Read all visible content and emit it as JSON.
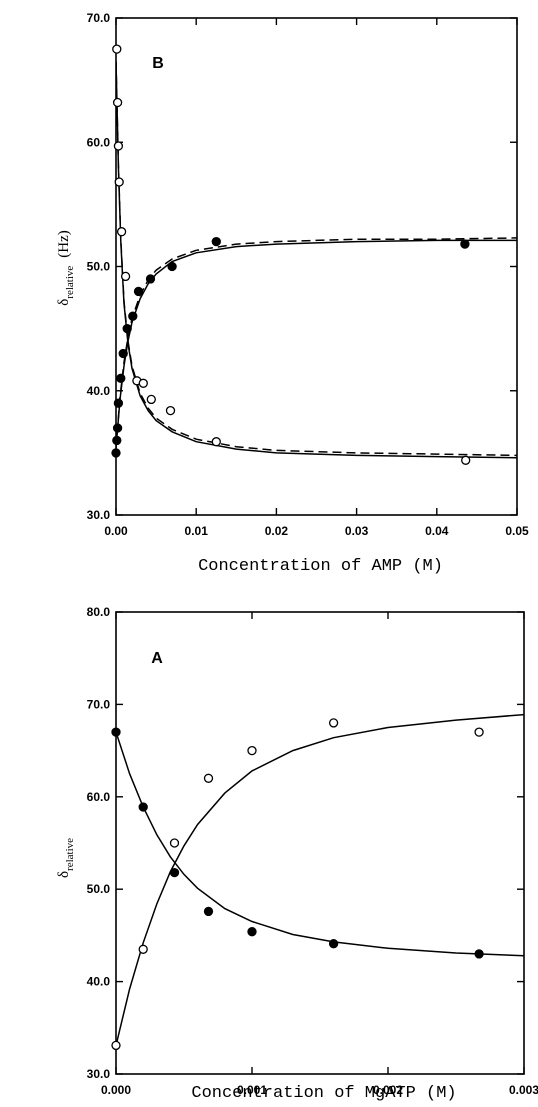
{
  "chart_data": [
    {
      "type": "scatter",
      "panel_label": "B",
      "xlabel": "Concentration of AMP (M)",
      "ylabel": {
        "base": "δ",
        "sub": "relative",
        "unit": "(Hz)"
      },
      "xlim": [
        0,
        0.05
      ],
      "ylim": [
        30,
        70
      ],
      "x_ticks": [
        "0.00",
        "0.01",
        "0.02",
        "0.03",
        "0.04",
        "0.05"
      ],
      "y_ticks": [
        "30.0",
        "40.0",
        "50.0",
        "60.0",
        "70.0"
      ],
      "grid": false,
      "series": [
        {
          "marker": "filled-circle",
          "points": [
            [
              0.0,
              35.0
            ],
            [
              0.0001,
              36.0
            ],
            [
              0.0002,
              37.0
            ],
            [
              0.0003,
              39.0
            ],
            [
              0.0006,
              41.0
            ],
            [
              0.0009,
              43.0
            ],
            [
              0.0014,
              45.0
            ],
            [
              0.0021,
              46.0
            ],
            [
              0.0028,
              48.0
            ],
            [
              0.0043,
              49.0
            ],
            [
              0.007,
              50.0
            ],
            [
              0.0125,
              52.0
            ],
            [
              0.0435,
              51.8
            ]
          ]
        },
        {
          "marker": "open-circle",
          "points": [
            [
              0.0001,
              67.5
            ],
            [
              0.0002,
              63.2
            ],
            [
              0.0003,
              59.7
            ],
            [
              0.0004,
              56.8
            ],
            [
              0.0007,
              52.8
            ],
            [
              0.0012,
              49.2
            ],
            [
              0.0026,
              40.8
            ],
            [
              0.0034,
              40.6
            ],
            [
              0.0044,
              39.3
            ],
            [
              0.0068,
              38.4
            ],
            [
              0.0125,
              35.9
            ],
            [
              0.0436,
              34.4
            ]
          ]
        }
      ],
      "fits": [
        {
          "style": "solid",
          "x": [
            0.0,
            0.0005,
            0.001,
            0.0015,
            0.002,
            0.003,
            0.004,
            0.005,
            0.007,
            0.01,
            0.015,
            0.02,
            0.03,
            0.04,
            0.05
          ],
          "y": [
            35.4,
            39.3,
            42.0,
            44.0,
            45.5,
            47.4,
            48.6,
            49.4,
            50.4,
            51.1,
            51.6,
            51.8,
            52.0,
            52.1,
            52.1
          ]
        },
        {
          "style": "dashed",
          "x": [
            0.0,
            0.0005,
            0.001,
            0.0015,
            0.002,
            0.003,
            0.004,
            0.005,
            0.007,
            0.01,
            0.015,
            0.02,
            0.03,
            0.04,
            0.05
          ],
          "y": [
            35.4,
            39.5,
            42.3,
            44.3,
            45.8,
            47.7,
            48.9,
            49.7,
            50.6,
            51.3,
            51.8,
            52.0,
            52.2,
            52.2,
            52.3
          ]
        },
        {
          "style": "solid",
          "x": [
            0.0,
            0.0003,
            0.0006,
            0.001,
            0.0015,
            0.002,
            0.003,
            0.004,
            0.005,
            0.007,
            0.01,
            0.015,
            0.02,
            0.03,
            0.04,
            0.05
          ],
          "y": [
            66.5,
            58.0,
            52.0,
            47.0,
            43.8,
            41.8,
            39.6,
            38.4,
            37.6,
            36.7,
            35.9,
            35.3,
            35.0,
            34.8,
            34.7,
            34.6
          ]
        },
        {
          "style": "dashed",
          "x": [
            0.0,
            0.0003,
            0.0006,
            0.001,
            0.0015,
            0.002,
            0.003,
            0.004,
            0.005,
            0.007,
            0.01,
            0.015,
            0.02,
            0.03,
            0.04,
            0.05
          ],
          "y": [
            66.5,
            58.2,
            52.2,
            47.2,
            44.0,
            42.0,
            39.8,
            38.6,
            37.8,
            36.9,
            36.1,
            35.5,
            35.2,
            35.0,
            34.9,
            34.8
          ]
        }
      ]
    },
    {
      "type": "scatter",
      "panel_label": "A",
      "xlabel": "Concentration of MgATP (M)",
      "ylabel": {
        "base": "δ",
        "sub": "relative",
        "unit": ""
      },
      "xlim": [
        0,
        0.003
      ],
      "ylim": [
        30,
        80
      ],
      "x_ticks": [
        "0.000",
        "0.001",
        "0.002",
        "0.003"
      ],
      "y_ticks": [
        "30.0",
        "40.0",
        "50.0",
        "60.0",
        "70.0",
        "80.0"
      ],
      "grid": false,
      "series": [
        {
          "marker": "filled-circle",
          "points": [
            [
              0.0,
              67.0
            ],
            [
              0.0002,
              58.9
            ],
            [
              0.00043,
              51.8
            ],
            [
              0.00068,
              47.6
            ],
            [
              0.001,
              45.4
            ],
            [
              0.0016,
              44.1
            ],
            [
              0.00267,
              43.0
            ]
          ]
        },
        {
          "marker": "open-circle",
          "points": [
            [
              0.0,
              33.1
            ],
            [
              0.0002,
              43.5
            ],
            [
              0.00043,
              55.0
            ],
            [
              0.00068,
              62.0
            ],
            [
              0.001,
              65.0
            ],
            [
              0.0016,
              68.0
            ],
            [
              0.00267,
              67.0
            ]
          ]
        }
      ],
      "fits": [
        {
          "style": "solid",
          "x": [
            0.0,
            0.0001,
            0.0002,
            0.0003,
            0.0004,
            0.0005,
            0.0006,
            0.0008,
            0.001,
            0.0013,
            0.0016,
            0.002,
            0.0025,
            0.003
          ],
          "y": [
            67.0,
            62.5,
            58.9,
            55.9,
            53.5,
            51.6,
            50.1,
            47.9,
            46.5,
            45.1,
            44.3,
            43.6,
            43.1,
            42.8
          ]
        },
        {
          "style": "solid",
          "x": [
            0.0,
            0.0001,
            0.0002,
            0.0003,
            0.0004,
            0.0005,
            0.0006,
            0.0008,
            0.001,
            0.0013,
            0.0016,
            0.002,
            0.0025,
            0.003
          ],
          "y": [
            33.1,
            39.2,
            44.2,
            48.4,
            51.9,
            54.7,
            57.0,
            60.4,
            62.8,
            65.0,
            66.4,
            67.5,
            68.3,
            68.9
          ]
        }
      ]
    }
  ]
}
